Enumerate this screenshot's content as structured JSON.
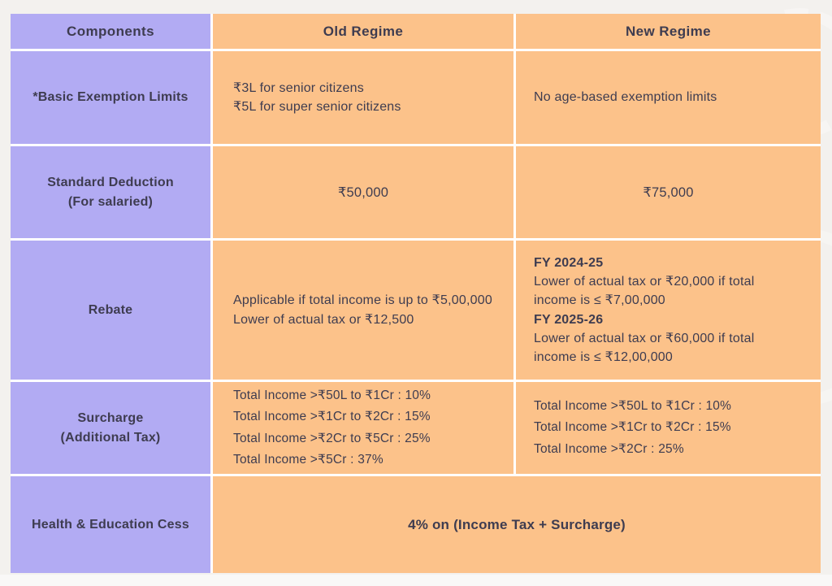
{
  "colors": {
    "components_column": "#b2abf3",
    "regime_columns": "#fcc28a",
    "text": "#3e3c50",
    "divider": "#ffffff",
    "page_background": "#f3f1ee"
  },
  "table": {
    "headers": {
      "components": "Components",
      "old": "Old Regime",
      "new": "New Regime"
    },
    "rows": {
      "basic_exemption": {
        "label": "*Basic Exemption Limits",
        "old": [
          "₹3L for senior citizens",
          "₹5L for super senior citizens"
        ],
        "new": "No age-based exemption limits"
      },
      "standard_deduction": {
        "label_line1": "Standard Deduction",
        "label_line2": "(For salaried)",
        "old": "₹50,000",
        "new": "₹75,000"
      },
      "rebate": {
        "label": "Rebate",
        "old": [
          "Applicable if total income is up to ₹5,00,000",
          "Lower of actual tax or ₹12,500"
        ],
        "new": [
          {
            "heading": "FY 2024-25",
            "text": "Lower of actual tax or ₹20,000 if total income is ≤ ₹7,00,000"
          },
          {
            "heading": "FY 2025-26",
            "text": "Lower of actual tax or ₹60,000 if total income is ≤ ₹12,00,000"
          }
        ]
      },
      "surcharge": {
        "label_line1": "Surcharge",
        "label_line2": "(Additional Tax)",
        "old": [
          "Total Income >₹50L to ₹1Cr : 10%",
          "Total Income >₹1Cr to ₹2Cr : 15%",
          "Total Income >₹2Cr to ₹5Cr : 25%",
          "Total Income >₹5Cr : 37%"
        ],
        "new": [
          "Total Income >₹50L to ₹1Cr : 10%",
          "Total Income >₹1Cr to ₹2Cr : 15%",
          "Total Income >₹2Cr :  25%"
        ]
      },
      "cess": {
        "label": "Health & Education Cess",
        "value": "4% on (Income Tax + Surcharge)"
      }
    }
  }
}
